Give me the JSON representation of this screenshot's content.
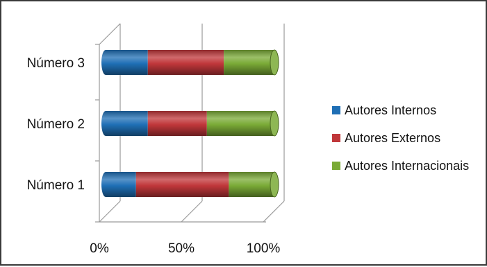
{
  "chart_data": {
    "type": "bar",
    "orientation": "horizontal",
    "stacked": "percent",
    "style": "3d-cylinder",
    "categories": [
      "Número 1",
      "Número 2",
      "Número 3"
    ],
    "series": [
      {
        "name": "Autores Internos",
        "values": [
          18,
          25,
          25
        ],
        "color": "#1f6fb5"
      },
      {
        "name": "Autores Externos",
        "values": [
          55,
          35,
          45
        ],
        "color": "#c0373a"
      },
      {
        "name": "Autores Internacionais",
        "values": [
          27,
          40,
          30
        ],
        "color": "#7aaa36"
      }
    ],
    "x_ticks": [
      "0%",
      "50%",
      "100%"
    ],
    "xlim": [
      0,
      100
    ],
    "grid": true,
    "legend_position": "right",
    "title": "",
    "xlabel": "",
    "ylabel": ""
  }
}
